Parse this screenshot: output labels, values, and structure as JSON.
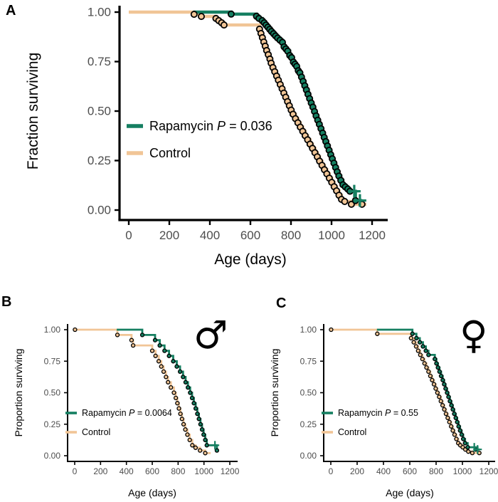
{
  "figure": {
    "background": "#ffffff",
    "colors": {
      "rapamycin": "#157f61",
      "control": "#f1c596",
      "tick_label": "#4d4d4d",
      "axis": "#000000"
    }
  },
  "chart_data": [
    {
      "type": "line",
      "subtype": "kaplan_meier_step",
      "panel_label": "A",
      "title": "",
      "xlabel": "Age (days)",
      "ylabel": "Fraction surviving",
      "xlim": [
        0,
        1260
      ],
      "ylim": [
        0,
        1
      ],
      "grid": false,
      "legend_position": "inside-left-middle",
      "x_ticks": [
        0,
        200,
        400,
        600,
        800,
        1000,
        1200
      ],
      "y_ticks": [
        {
          "v": 1,
          "label": "1.00"
        },
        {
          "v": 0.75,
          "label": "0.75"
        },
        {
          "v": 0.5,
          "label": "0.50"
        },
        {
          "v": 0.25,
          "label": "0.25"
        },
        {
          "v": 0,
          "label": "0.00"
        }
      ],
      "series": [
        {
          "name": "Rapamycin",
          "color": "#157f61",
          "legend_pre": "Rapamycin ",
          "legend_pvar": "P",
          "legend_post": " = 0.036",
          "draw_from": 318,
          "points": [
            [
              505,
              0.99
            ],
            [
              630,
              0.979
            ],
            [
              642,
              0.968
            ],
            [
              658,
              0.957
            ],
            [
              668,
              0.946
            ],
            [
              677,
              0.935
            ],
            [
              686,
              0.924
            ],
            [
              695,
              0.913
            ],
            [
              704,
              0.902
            ],
            [
              714,
              0.891
            ],
            [
              724,
              0.88
            ],
            [
              734,
              0.869
            ],
            [
              746,
              0.858
            ],
            [
              758,
              0.847
            ],
            [
              766,
              0.825
            ],
            [
              775,
              0.814
            ],
            [
              784,
              0.803
            ],
            [
              794,
              0.781
            ],
            [
              803,
              0.77
            ],
            [
              812,
              0.748
            ],
            [
              820,
              0.737
            ],
            [
              828,
              0.726
            ],
            [
              836,
              0.704
            ],
            [
              844,
              0.693
            ],
            [
              852,
              0.672
            ],
            [
              860,
              0.65
            ],
            [
              868,
              0.628
            ],
            [
              876,
              0.607
            ],
            [
              884,
              0.585
            ],
            [
              892,
              0.563
            ],
            [
              900,
              0.541
            ],
            [
              908,
              0.52
            ],
            [
              916,
              0.498
            ],
            [
              924,
              0.476
            ],
            [
              932,
              0.454
            ],
            [
              940,
              0.433
            ],
            [
              948,
              0.411
            ],
            [
              956,
              0.389
            ],
            [
              964,
              0.367
            ],
            [
              972,
              0.346
            ],
            [
              980,
              0.324
            ],
            [
              988,
              0.302
            ],
            [
              996,
              0.28
            ],
            [
              1004,
              0.259
            ],
            [
              1012,
              0.237
            ],
            [
              1020,
              0.215
            ],
            [
              1028,
              0.193
            ],
            [
              1036,
              0.172
            ],
            [
              1046,
              0.15
            ],
            [
              1056,
              0.128
            ],
            [
              1068,
              0.117
            ],
            [
              1080,
              0.106
            ],
            [
              1091,
              0.095
            ],
            [
              1118,
              0.048
            ]
          ],
          "censored": [
            [
              1112,
              0.095
            ],
            [
              1140,
              0.048
            ]
          ],
          "end": 1152
        },
        {
          "name": "Control",
          "color": "#f1c596",
          "legend_pre": "Control",
          "draw_from": 0,
          "points": [
            [
              322,
              0.989
            ],
            [
              358,
              0.978
            ],
            [
              430,
              0.968
            ],
            [
              444,
              0.957
            ],
            [
              458,
              0.946
            ],
            [
              470,
              0.935
            ],
            [
              645,
              0.914
            ],
            [
              652,
              0.892
            ],
            [
              659,
              0.871
            ],
            [
              666,
              0.849
            ],
            [
              673,
              0.828
            ],
            [
              680,
              0.806
            ],
            [
              688,
              0.785
            ],
            [
              696,
              0.763
            ],
            [
              702,
              0.742
            ],
            [
              711,
              0.72
            ],
            [
              720,
              0.699
            ],
            [
              729,
              0.677
            ],
            [
              738,
              0.656
            ],
            [
              747,
              0.634
            ],
            [
              756,
              0.613
            ],
            [
              765,
              0.591
            ],
            [
              774,
              0.57
            ],
            [
              783,
              0.548
            ],
            [
              792,
              0.527
            ],
            [
              801,
              0.505
            ],
            [
              810,
              0.484
            ],
            [
              822,
              0.462
            ],
            [
              834,
              0.441
            ],
            [
              846,
              0.419
            ],
            [
              858,
              0.398
            ],
            [
              870,
              0.376
            ],
            [
              882,
              0.355
            ],
            [
              894,
              0.333
            ],
            [
              906,
              0.312
            ],
            [
              918,
              0.29
            ],
            [
              930,
              0.269
            ],
            [
              941,
              0.247
            ],
            [
              953,
              0.226
            ],
            [
              965,
              0.204
            ],
            [
              977,
              0.183
            ],
            [
              989,
              0.161
            ],
            [
              1001,
              0.14
            ],
            [
              1013,
              0.118
            ],
            [
              1025,
              0.097
            ],
            [
              1037,
              0.075
            ],
            [
              1049,
              0.054
            ],
            [
              1065,
              0.043
            ],
            [
              1098,
              0.029
            ]
          ],
          "extra_markers": [
            [
              1150,
              0.029
            ]
          ],
          "end": 1172
        }
      ]
    },
    {
      "type": "line",
      "subtype": "kaplan_meier_step",
      "panel_label": "B",
      "sex_symbol": "♂",
      "title": "",
      "xlabel": "Age (days)",
      "ylabel": "Proportion surviving",
      "xlim": [
        0,
        1260
      ],
      "ylim": [
        0,
        1
      ],
      "grid": false,
      "legend_position": "inside-left-middle",
      "x_ticks": [
        0,
        200,
        400,
        600,
        800,
        1000,
        1200
      ],
      "y_ticks": [
        {
          "v": 1,
          "label": "1.00"
        },
        {
          "v": 0.75,
          "label": "0.75"
        },
        {
          "v": 0.5,
          "label": "0.50"
        },
        {
          "v": 0.25,
          "label": "0.25"
        },
        {
          "v": 0,
          "label": "0.00"
        }
      ],
      "series": [
        {
          "name": "Rapamycin",
          "color": "#157f61",
          "legend_pre": "Rapamycin ",
          "legend_pvar": "P",
          "legend_post": " = 0.0064",
          "draw_from": 325,
          "points": [
            [
              523,
              0.958
            ],
            [
              622,
              0.917
            ],
            [
              658,
              0.875
            ],
            [
              695,
              0.833
            ],
            [
              730,
              0.792
            ],
            [
              762,
              0.75
            ],
            [
              790,
              0.708
            ],
            [
              815,
              0.667
            ],
            [
              838,
              0.625
            ],
            [
              858,
              0.583
            ],
            [
              876,
              0.542
            ],
            [
              893,
              0.5
            ],
            [
              908,
              0.458
            ],
            [
              922,
              0.417
            ],
            [
              936,
              0.375
            ],
            [
              949,
              0.333
            ],
            [
              961,
              0.292
            ],
            [
              973,
              0.25
            ],
            [
              985,
              0.208
            ],
            [
              997,
              0.167
            ],
            [
              1010,
              0.125
            ],
            [
              1022,
              0.083
            ],
            [
              1100,
              0.042
            ]
          ],
          "censored": [
            [
              1085,
              0.083
            ]
          ],
          "end": 1112
        },
        {
          "name": "Control",
          "color": "#f1c596",
          "legend_pre": "Control",
          "draw_from": 0,
          "points": [
            [
              330,
              0.958
            ],
            [
              440,
              0.917
            ],
            [
              452,
              0.875
            ],
            [
              600,
              0.833
            ],
            [
              625,
              0.792
            ],
            [
              650,
              0.75
            ],
            [
              670,
              0.708
            ],
            [
              688,
              0.667
            ],
            [
              706,
              0.625
            ],
            [
              722,
              0.583
            ],
            [
              744,
              0.542
            ],
            [
              768,
              0.5
            ],
            [
              782,
              0.458
            ],
            [
              794,
              0.417
            ],
            [
              806,
              0.375
            ],
            [
              818,
              0.333
            ],
            [
              830,
              0.292
            ],
            [
              842,
              0.25
            ],
            [
              856,
              0.208
            ],
            [
              872,
              0.167
            ],
            [
              890,
              0.125
            ],
            [
              910,
              0.083
            ],
            [
              935,
              0.063
            ],
            [
              970,
              0.042
            ],
            [
              1010,
              0.021
            ]
          ],
          "extra_markers": [
            [
              2,
              1.0
            ]
          ],
          "end": 1052
        }
      ]
    },
    {
      "type": "line",
      "subtype": "kaplan_meier_step",
      "panel_label": "C",
      "sex_symbol": "♀",
      "title": "",
      "xlabel": "Age (days)",
      "ylabel": "Proportion surviving",
      "xlim": [
        0,
        1260
      ],
      "ylim": [
        0,
        1
      ],
      "grid": false,
      "legend_position": "inside-left-middle",
      "x_ticks": [
        0,
        200,
        400,
        600,
        800,
        1000,
        1200
      ],
      "y_ticks": [
        {
          "v": 1,
          "label": "1.00"
        },
        {
          "v": 0.75,
          "label": "0.75"
        },
        {
          "v": 0.5,
          "label": "0.50"
        },
        {
          "v": 0.25,
          "label": "0.25"
        },
        {
          "v": 0,
          "label": "0.00"
        }
      ],
      "series": [
        {
          "name": "Rapamycin",
          "color": "#157f61",
          "legend_pre": "Rapamycin ",
          "legend_pvar": "P",
          "legend_post": " = 0.55",
          "draw_from": 350,
          "points": [
            [
              620,
              0.967
            ],
            [
              650,
              0.933
            ],
            [
              676,
              0.9
            ],
            [
              700,
              0.867
            ],
            [
              722,
              0.833
            ],
            [
              742,
              0.8
            ],
            [
              790,
              0.767
            ],
            [
              802,
              0.733
            ],
            [
              814,
              0.7
            ],
            [
              826,
              0.667
            ],
            [
              838,
              0.633
            ],
            [
              850,
              0.6
            ],
            [
              861,
              0.567
            ],
            [
              872,
              0.533
            ],
            [
              883,
              0.5
            ],
            [
              894,
              0.467
            ],
            [
              905,
              0.433
            ],
            [
              916,
              0.4
            ],
            [
              927,
              0.367
            ],
            [
              938,
              0.333
            ],
            [
              949,
              0.3
            ],
            [
              960,
              0.267
            ],
            [
              971,
              0.233
            ],
            [
              982,
              0.2
            ],
            [
              994,
              0.167
            ],
            [
              1006,
              0.133
            ],
            [
              1020,
              0.1
            ],
            [
              1040,
              0.067
            ],
            [
              1100,
              0.05
            ]
          ],
          "censored": [
            [
              1090,
              0.067
            ],
            [
              1115,
              0.05
            ]
          ],
          "end": 1130
        },
        {
          "name": "Control",
          "color": "#f1c596",
          "legend_pre": "Control",
          "draw_from": 0,
          "points": [
            [
              353,
              0.967
            ],
            [
              610,
              0.933
            ],
            [
              630,
              0.9
            ],
            [
              648,
              0.867
            ],
            [
              664,
              0.833
            ],
            [
              680,
              0.8
            ],
            [
              696,
              0.767
            ],
            [
              712,
              0.733
            ],
            [
              727,
              0.7
            ],
            [
              742,
              0.667
            ],
            [
              756,
              0.633
            ],
            [
              770,
              0.6
            ],
            [
              784,
              0.567
            ],
            [
              797,
              0.533
            ],
            [
              810,
              0.5
            ],
            [
              823,
              0.467
            ],
            [
              836,
              0.433
            ],
            [
              849,
              0.4
            ],
            [
              862,
              0.367
            ],
            [
              875,
              0.333
            ],
            [
              888,
              0.3
            ],
            [
              901,
              0.267
            ],
            [
              914,
              0.233
            ],
            [
              927,
              0.2
            ],
            [
              940,
              0.167
            ],
            [
              954,
              0.133
            ],
            [
              968,
              0.1
            ],
            [
              984,
              0.083
            ],
            [
              1002,
              0.067
            ],
            [
              1022,
              0.05
            ],
            [
              1045,
              0.033
            ],
            [
              1075,
              0.022
            ]
          ],
          "extra_markers": [
            [
              2,
              1.0
            ],
            [
              1128,
              0.022
            ]
          ],
          "end": 1145
        }
      ]
    }
  ]
}
